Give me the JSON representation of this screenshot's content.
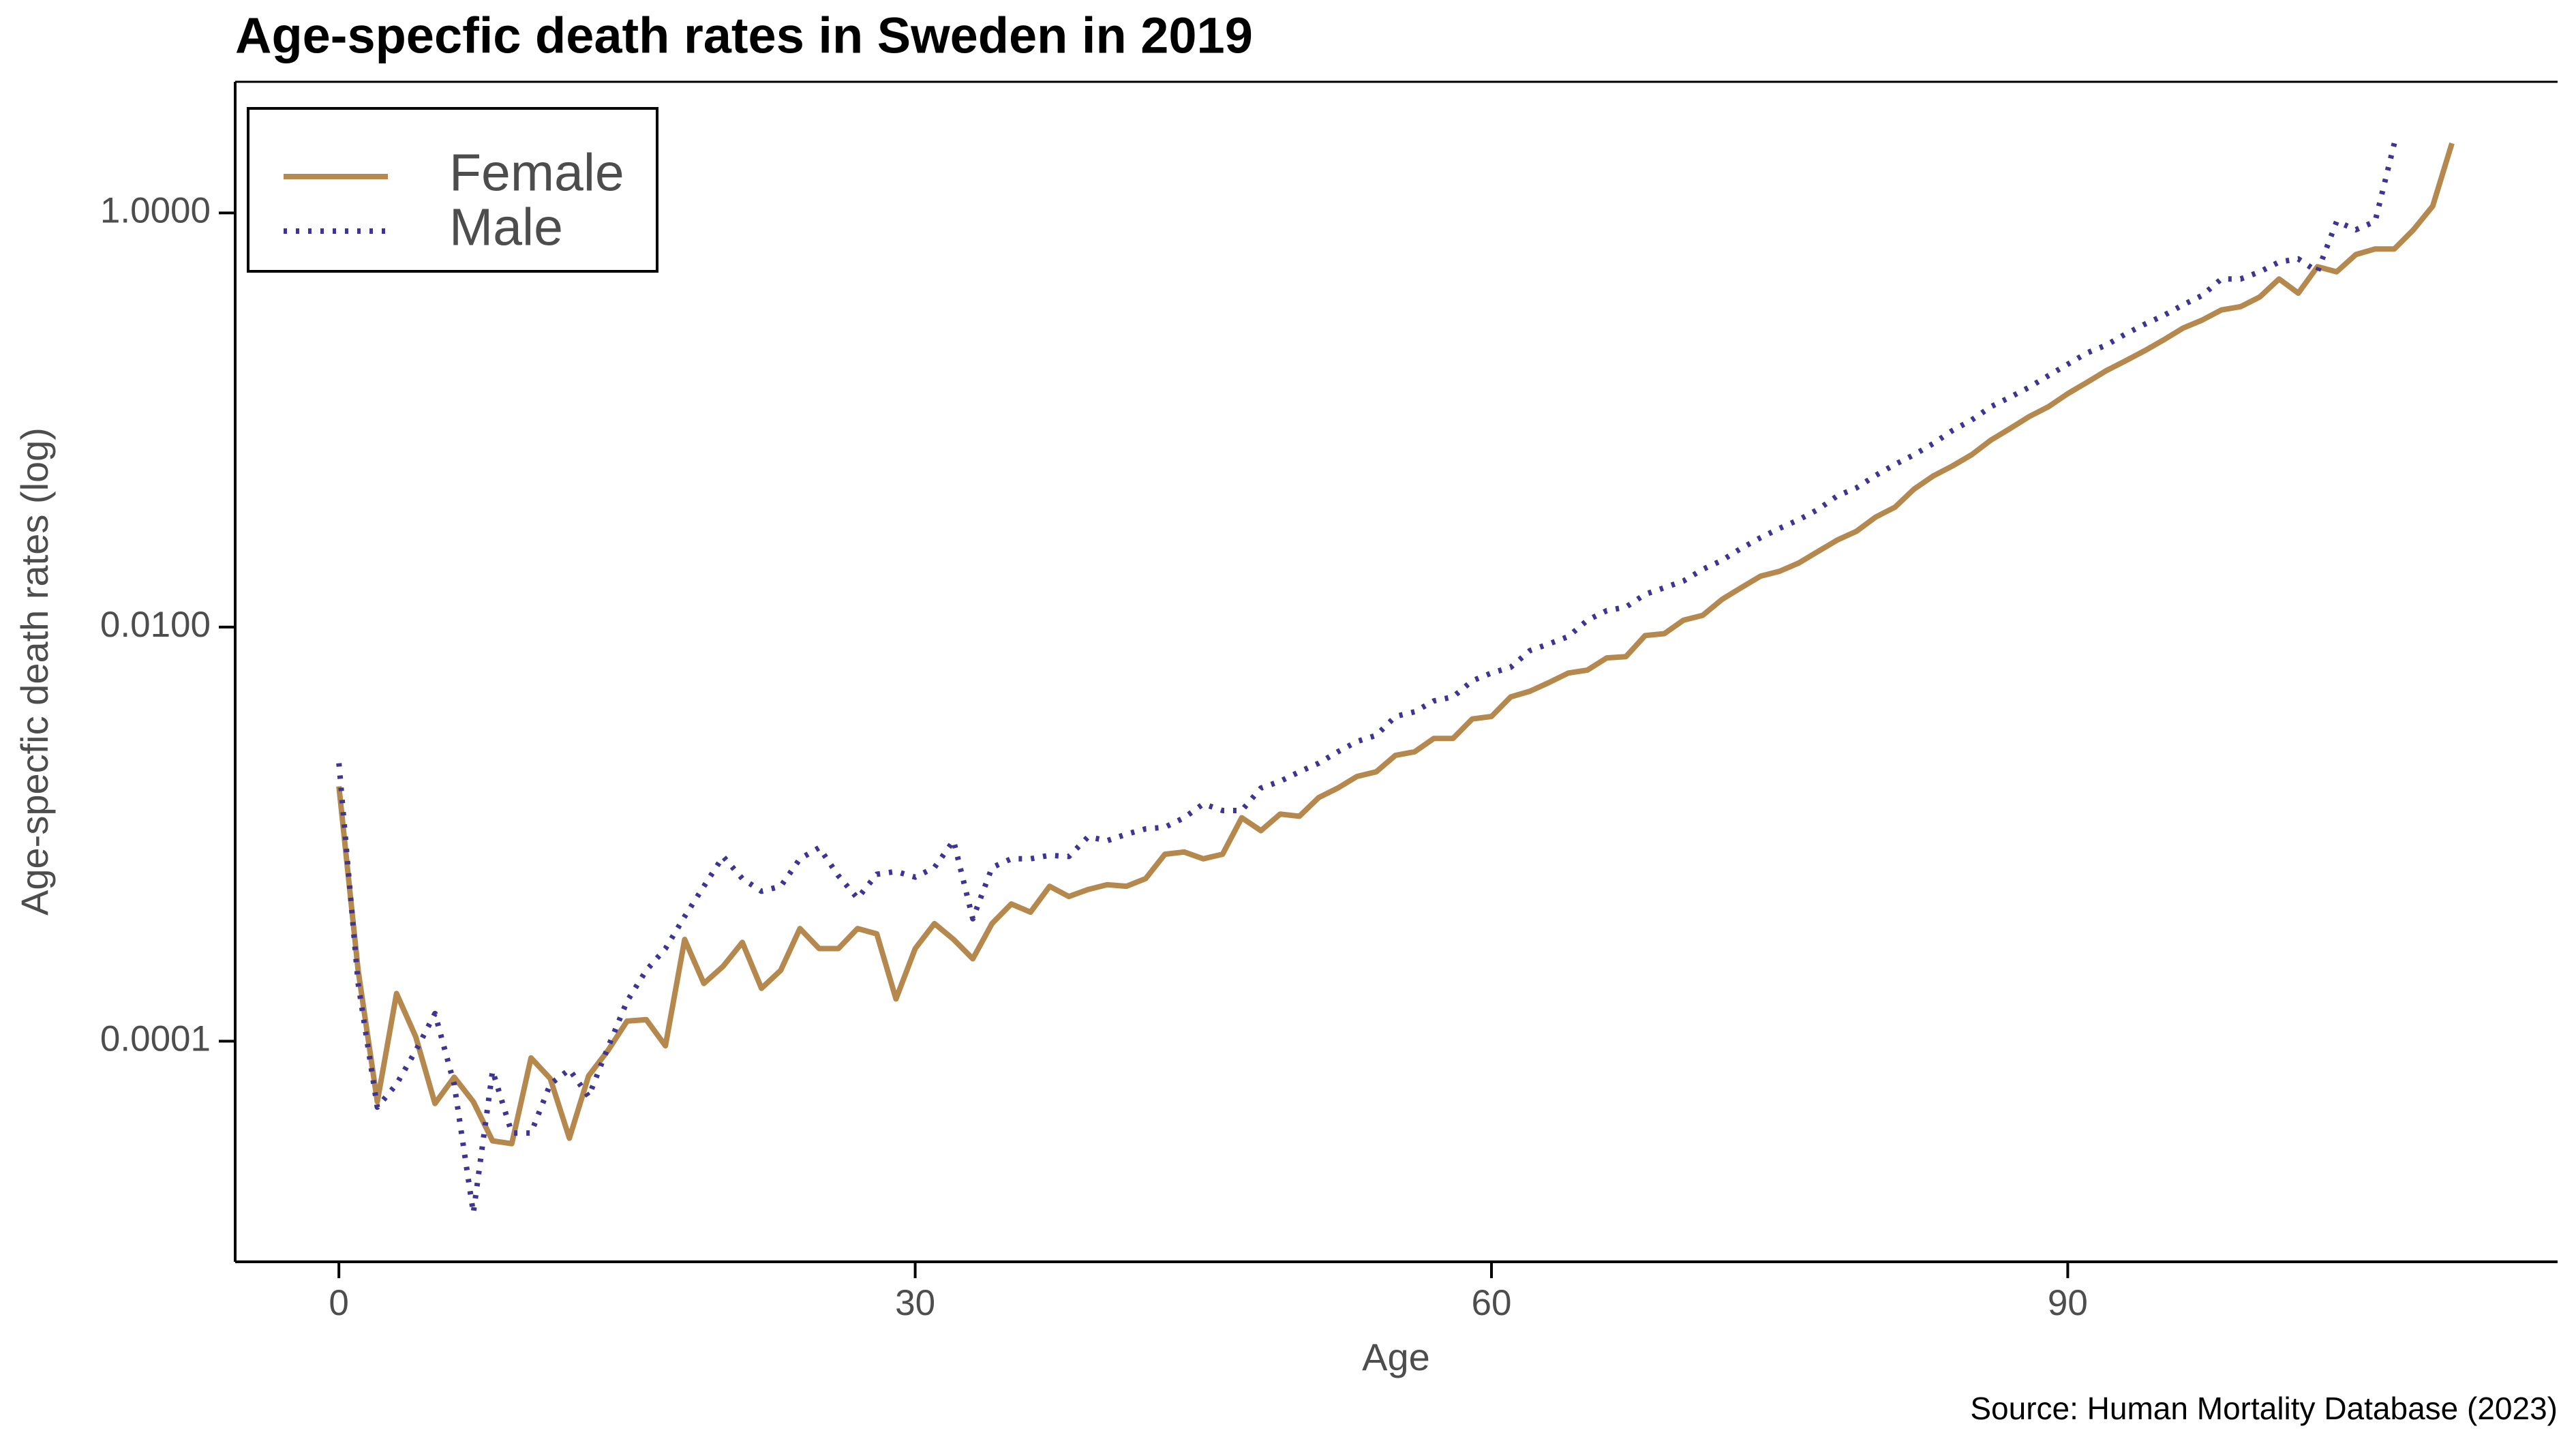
{
  "chart_data": {
    "type": "line",
    "title": "Age-specfic death rates in Sweden in 2019",
    "x_label": "Age",
    "y_label": "Age-specfic death rates (log)",
    "source": "Source: Human Mortality Database (2023)",
    "y_scale": "log",
    "legend": "upper left",
    "x": [
      0,
      1,
      2,
      3,
      4,
      5,
      6,
      7,
      8,
      9,
      10,
      11,
      12,
      13,
      14,
      15,
      16,
      17,
      18,
      19,
      20,
      21,
      22,
      23,
      24,
      25,
      26,
      27,
      28,
      29,
      30,
      31,
      32,
      33,
      34,
      35,
      36,
      37,
      38,
      39,
      40,
      41,
      42,
      43,
      44,
      45,
      46,
      47,
      48,
      49,
      50,
      51,
      52,
      53,
      54,
      55,
      56,
      57,
      58,
      59,
      60,
      61,
      62,
      63,
      64,
      65,
      66,
      67,
      68,
      69,
      70,
      71,
      72,
      73,
      74,
      75,
      76,
      77,
      78,
      79,
      80,
      81,
      82,
      83,
      84,
      85,
      86,
      87,
      88,
      89,
      90,
      91,
      92,
      93,
      94,
      95,
      96,
      97,
      98,
      99,
      100,
      101,
      102,
      103,
      104,
      105,
      106,
      107,
      108,
      109,
      110
    ],
    "series": [
      {
        "name": "Female",
        "color": "#b5884e",
        "dash": "solid",
        "values": [
          0.0017,
          0.00022,
          5.1e-05,
          0.00017,
          0.000105,
          5e-05,
          6.7e-05,
          5.1e-05,
          3.3e-05,
          3.2e-05,
          8.3e-05,
          6.6e-05,
          3.4e-05,
          6.8e-05,
          9e-05,
          0.000125,
          0.000127,
          9.5e-05,
          0.00031,
          0.00019,
          0.00023,
          0.0003,
          0.00018,
          0.00022,
          0.00035,
          0.00028,
          0.00028,
          0.00035,
          0.00033,
          0.00016,
          0.00028,
          0.00037,
          0.00031,
          0.00025,
          0.00037,
          0.00046,
          0.00042,
          0.00056,
          0.0005,
          0.00054,
          0.00057,
          0.00056,
          0.00061,
          0.0008,
          0.00082,
          0.00076,
          0.0008,
          0.0012,
          0.00104,
          0.00125,
          0.00122,
          0.0015,
          0.00167,
          0.0019,
          0.002,
          0.0024,
          0.0025,
          0.0029,
          0.0029,
          0.0036,
          0.0037,
          0.0046,
          0.0049,
          0.0054,
          0.006,
          0.0062,
          0.0071,
          0.0072,
          0.0091,
          0.0093,
          0.0108,
          0.0114,
          0.0136,
          0.0155,
          0.0176,
          0.0186,
          0.0204,
          0.0232,
          0.0263,
          0.029,
          0.034,
          0.0379,
          0.0464,
          0.0537,
          0.06,
          0.068,
          0.08,
          0.091,
          0.104,
          0.116,
          0.134,
          0.152,
          0.173,
          0.193,
          0.216,
          0.244,
          0.278,
          0.304,
          0.34,
          0.353,
          0.393,
          0.48,
          0.41,
          0.55,
          0.52,
          0.63,
          0.67,
          0.67,
          0.83,
          1.08,
          2.17
        ]
      },
      {
        "name": "Male",
        "color": "#3e3592",
        "dash": "dotted",
        "values": [
          0.0022,
          0.00019,
          4.8e-05,
          6.2e-05,
          9e-05,
          0.000136,
          6.2e-05,
          1.48e-05,
          7.2e-05,
          3.6e-05,
          3.6e-05,
          6.2e-05,
          7.3e-05,
          5.4e-05,
          9.3e-05,
          0.000156,
          0.00022,
          0.00028,
          0.0004,
          0.00056,
          0.00078,
          0.00061,
          0.00053,
          0.00056,
          0.00076,
          0.00086,
          0.00063,
          0.00049,
          0.00064,
          0.00066,
          0.00062,
          0.00069,
          0.00093,
          0.00039,
          0.00069,
          0.00076,
          0.00076,
          0.00079,
          0.00078,
          0.00097,
          0.00093,
          0.001,
          0.00106,
          0.00108,
          0.0012,
          0.0014,
          0.0013,
          0.0013,
          0.00167,
          0.0018,
          0.002,
          0.0022,
          0.0025,
          0.0028,
          0.003,
          0.0037,
          0.0039,
          0.0044,
          0.0046,
          0.0055,
          0.006,
          0.0064,
          0.0077,
          0.0083,
          0.009,
          0.0108,
          0.012,
          0.0125,
          0.0144,
          0.0155,
          0.0167,
          0.019,
          0.021,
          0.024,
          0.027,
          0.03,
          0.033,
          0.037,
          0.043,
          0.047,
          0.054,
          0.061,
          0.068,
          0.077,
          0.089,
          0.1,
          0.116,
          0.129,
          0.144,
          0.164,
          0.186,
          0.211,
          0.23,
          0.26,
          0.29,
          0.32,
          0.36,
          0.4,
          0.48,
          0.48,
          0.52,
          0.58,
          0.6,
          0.52,
          0.91,
          0.83,
          0.91,
          2.17,
          null,
          null,
          null
        ]
      }
    ],
    "xlim": [
      -5.4,
      115.5
    ],
    "xticks": [
      0,
      30,
      60,
      90
    ],
    "ylim": [
      8.6e-06,
      4.3
    ],
    "yticks": [
      {
        "value": 0.0001,
        "label": "0.0001"
      },
      {
        "value": 0.01,
        "label": "0.0100"
      },
      {
        "value": 1,
        "label": "1.0000"
      }
    ]
  }
}
